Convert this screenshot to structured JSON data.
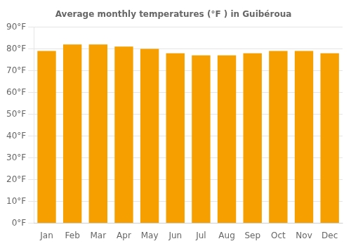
{
  "chart_data": {
    "type": "bar",
    "title": "Average monthly temperatures (°F ) in Guibéroua",
    "categories": [
      "Jan",
      "Feb",
      "Mar",
      "Apr",
      "May",
      "Jun",
      "Jul",
      "Aug",
      "Sep",
      "Oct",
      "Nov",
      "Dec"
    ],
    "values": [
      79,
      82,
      82,
      81,
      80,
      78,
      77,
      77,
      78,
      79,
      79,
      78
    ],
    "color": "#F5A000",
    "ylim": [
      0,
      90
    ],
    "yticks": [
      {
        "value": 0,
        "label": "0°F"
      },
      {
        "value": 10,
        "label": "10°F"
      },
      {
        "value": 20,
        "label": "20°F"
      },
      {
        "value": 30,
        "label": "30°F"
      },
      {
        "value": 40,
        "label": "40°F"
      },
      {
        "value": 50,
        "label": "50°F"
      },
      {
        "value": 60,
        "label": "60°F"
      },
      {
        "value": 70,
        "label": "70°F"
      },
      {
        "value": 80,
        "label": "80°F"
      },
      {
        "value": 90,
        "label": "90°F"
      }
    ],
    "grid": true
  }
}
